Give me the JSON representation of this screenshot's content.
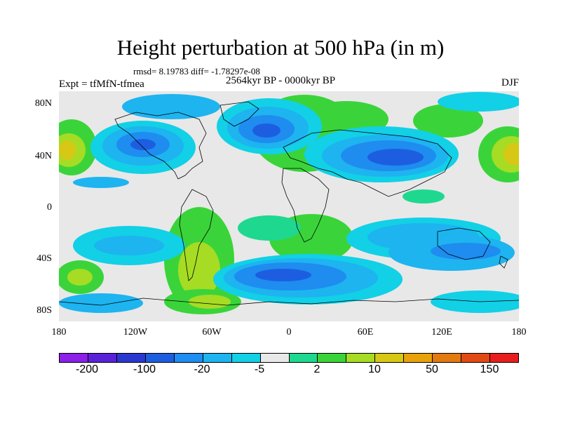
{
  "title": "Height perturbation at 500 hPa (in m)",
  "stats": "rmsd= 8.19783  diff= -1.78297e-08",
  "period": "2564kyr BP - 0000kyr BP",
  "experiment": "Expt = tfMfN-tfmea",
  "season": "DJF",
  "lat_labels": [
    "80N",
    "40N",
    "0",
    "40S",
    "80S"
  ],
  "lon_labels": [
    "180",
    "120W",
    "60W",
    "0",
    "60E",
    "120E",
    "180"
  ],
  "colorbar": {
    "colors": [
      "#8c1fe8",
      "#5a22d8",
      "#2b38d0",
      "#1d5ee0",
      "#1f8cf0",
      "#1db4f0",
      "#12d0e6",
      "#e8e8e8",
      "#1ed890",
      "#3ad43a",
      "#a6dc24",
      "#d6c814",
      "#e8a20c",
      "#e27a10",
      "#e24a14",
      "#e81e1e"
    ],
    "labels": [
      "-200",
      "-100",
      "-20",
      "-5",
      "2",
      "10",
      "50",
      "150"
    ]
  },
  "map": {
    "background_color": "#e8e8e8",
    "features": [
      {
        "name": "negative-anomaly-north-pacific",
        "color": "#1f8cf0"
      },
      {
        "name": "negative-anomaly-north-atlantic",
        "color": "#1f8cf0"
      },
      {
        "name": "negative-anomaly-asia",
        "color": "#1f8cf0"
      },
      {
        "name": "negative-anomaly-southern-ocean",
        "color": "#1f8cf0"
      },
      {
        "name": "positive-anomaly-pacific",
        "color": "#d6c814"
      }
    ]
  }
}
